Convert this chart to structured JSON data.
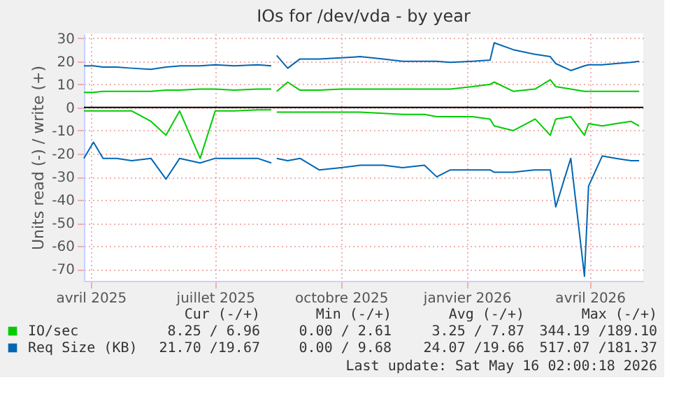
{
  "chart_data": {
    "type": "line",
    "title": "IOs for /dev/vda - by year",
    "ylabel": "Units read (-) / write (+)",
    "x": [
      "2025-03-27",
      "2025-04-03",
      "2025-04-10",
      "2025-04-20",
      "2025-05-01",
      "2025-05-15",
      "2025-05-26",
      "2025-06-05",
      "2025-06-20",
      "2025-07-01",
      "2025-07-15",
      "2025-08-01",
      "2025-08-11",
      "2025-08-13",
      "2025-08-15",
      "2025-08-23",
      "2025-09-01",
      "2025-09-15",
      "2025-10-01",
      "2025-10-15",
      "2025-11-01",
      "2025-11-15",
      "2025-12-01",
      "2025-12-10",
      "2025-12-20",
      "2026-01-05",
      "2026-01-18",
      "2026-01-21",
      "2026-02-04",
      "2026-02-20",
      "2026-03-03",
      "2026-03-07",
      "2026-03-18",
      "2026-03-28",
      "2026-03-31",
      "2026-04-10",
      "2026-04-20",
      "2026-05-01",
      "2026-05-07"
    ],
    "series": [
      {
        "name": "IO/sec",
        "color": "#00cc00",
        "values": [
          6.5,
          6.5,
          7,
          7,
          7,
          7,
          7.5,
          7.5,
          8,
          8,
          7.5,
          8,
          8,
          null,
          7,
          11,
          7.5,
          7.5,
          8,
          8,
          8,
          8,
          8,
          8,
          8,
          9,
          10,
          11,
          7,
          8,
          12,
          9,
          8,
          7,
          7,
          7,
          7,
          7,
          7
        ]
      },
      {
        "name": "Req Size (KB)",
        "color": "#0066b3",
        "values": [
          18,
          18,
          17.5,
          17.5,
          17,
          16.5,
          17.5,
          18,
          18,
          18.5,
          18,
          18.5,
          18,
          null,
          22.5,
          17,
          21,
          21,
          21.5,
          22,
          21,
          20,
          20,
          20,
          19.5,
          20,
          20.5,
          28,
          25,
          23,
          22,
          19,
          16,
          18,
          18.5,
          18.5,
          19,
          19.5,
          20
        ]
      },
      {
        "color": "#00cc00",
        "values": [
          -1.5,
          -1.5,
          -1.5,
          -1.5,
          -1.5,
          -6,
          -12,
          -1.5,
          -22,
          -1.5,
          -1.5,
          -1,
          -1,
          null,
          -2,
          -2,
          -2,
          -2,
          -2,
          -2,
          -2.5,
          -3,
          -3,
          -4,
          -4,
          -4,
          -5,
          -8,
          -10,
          -5,
          -12,
          -5,
          -4,
          -12,
          -7,
          -8,
          -7,
          -6,
          -8
        ]
      },
      {
        "color": "#0066b3",
        "values": [
          -22,
          -15,
          -22,
          -22,
          -23,
          -22,
          -31,
          -22,
          -24,
          -22,
          -22,
          -22,
          -24,
          null,
          -22,
          -23,
          -22,
          -27,
          -26,
          -25,
          -25,
          -26,
          -25,
          -30,
          -27,
          -27,
          -27,
          -28,
          -28,
          -27,
          -27,
          -43,
          -22,
          -73,
          -34,
          -21,
          -22,
          -23,
          -23
        ]
      }
    ],
    "xlim": [
      "2025-03-27",
      "2026-05-10"
    ],
    "xticks": [
      {
        "value": "2025-04-01",
        "label": "avril 2025"
      },
      {
        "value": "2025-07-01",
        "label": "juillet 2025"
      },
      {
        "value": "2025-10-01",
        "label": "octobre 2025"
      },
      {
        "value": "2026-01-01",
        "label": "janvier 2026"
      },
      {
        "value": "2026-04-01",
        "label": "avril 2026"
      }
    ],
    "ylim": [
      -75,
      32
    ],
    "yticks": [
      -70,
      -60,
      -50,
      -40,
      -30,
      -20,
      -10,
      0,
      10,
      20,
      30
    ],
    "ref_lines": [
      {
        "axis": "y",
        "value": 0,
        "color": "#000000"
      }
    ],
    "grid": true,
    "legend": "bottom",
    "line_style": "solid",
    "marker": "none",
    "annotations": [
      "Cur (-/+)",
      "Min (-/+)",
      "Avg (-/+)",
      "Max (-/+)",
      "8.25 / 6.96",
      "0.00 / 2.61",
      "3.25 / 7.87",
      "344.19 /189.10",
      "21.70 /19.67",
      "0.00 / 9.68",
      "24.07 /19.66",
      "517.07 /181.37",
      "Last update: Sat May 16 02:00:18 2026"
    ]
  }
}
